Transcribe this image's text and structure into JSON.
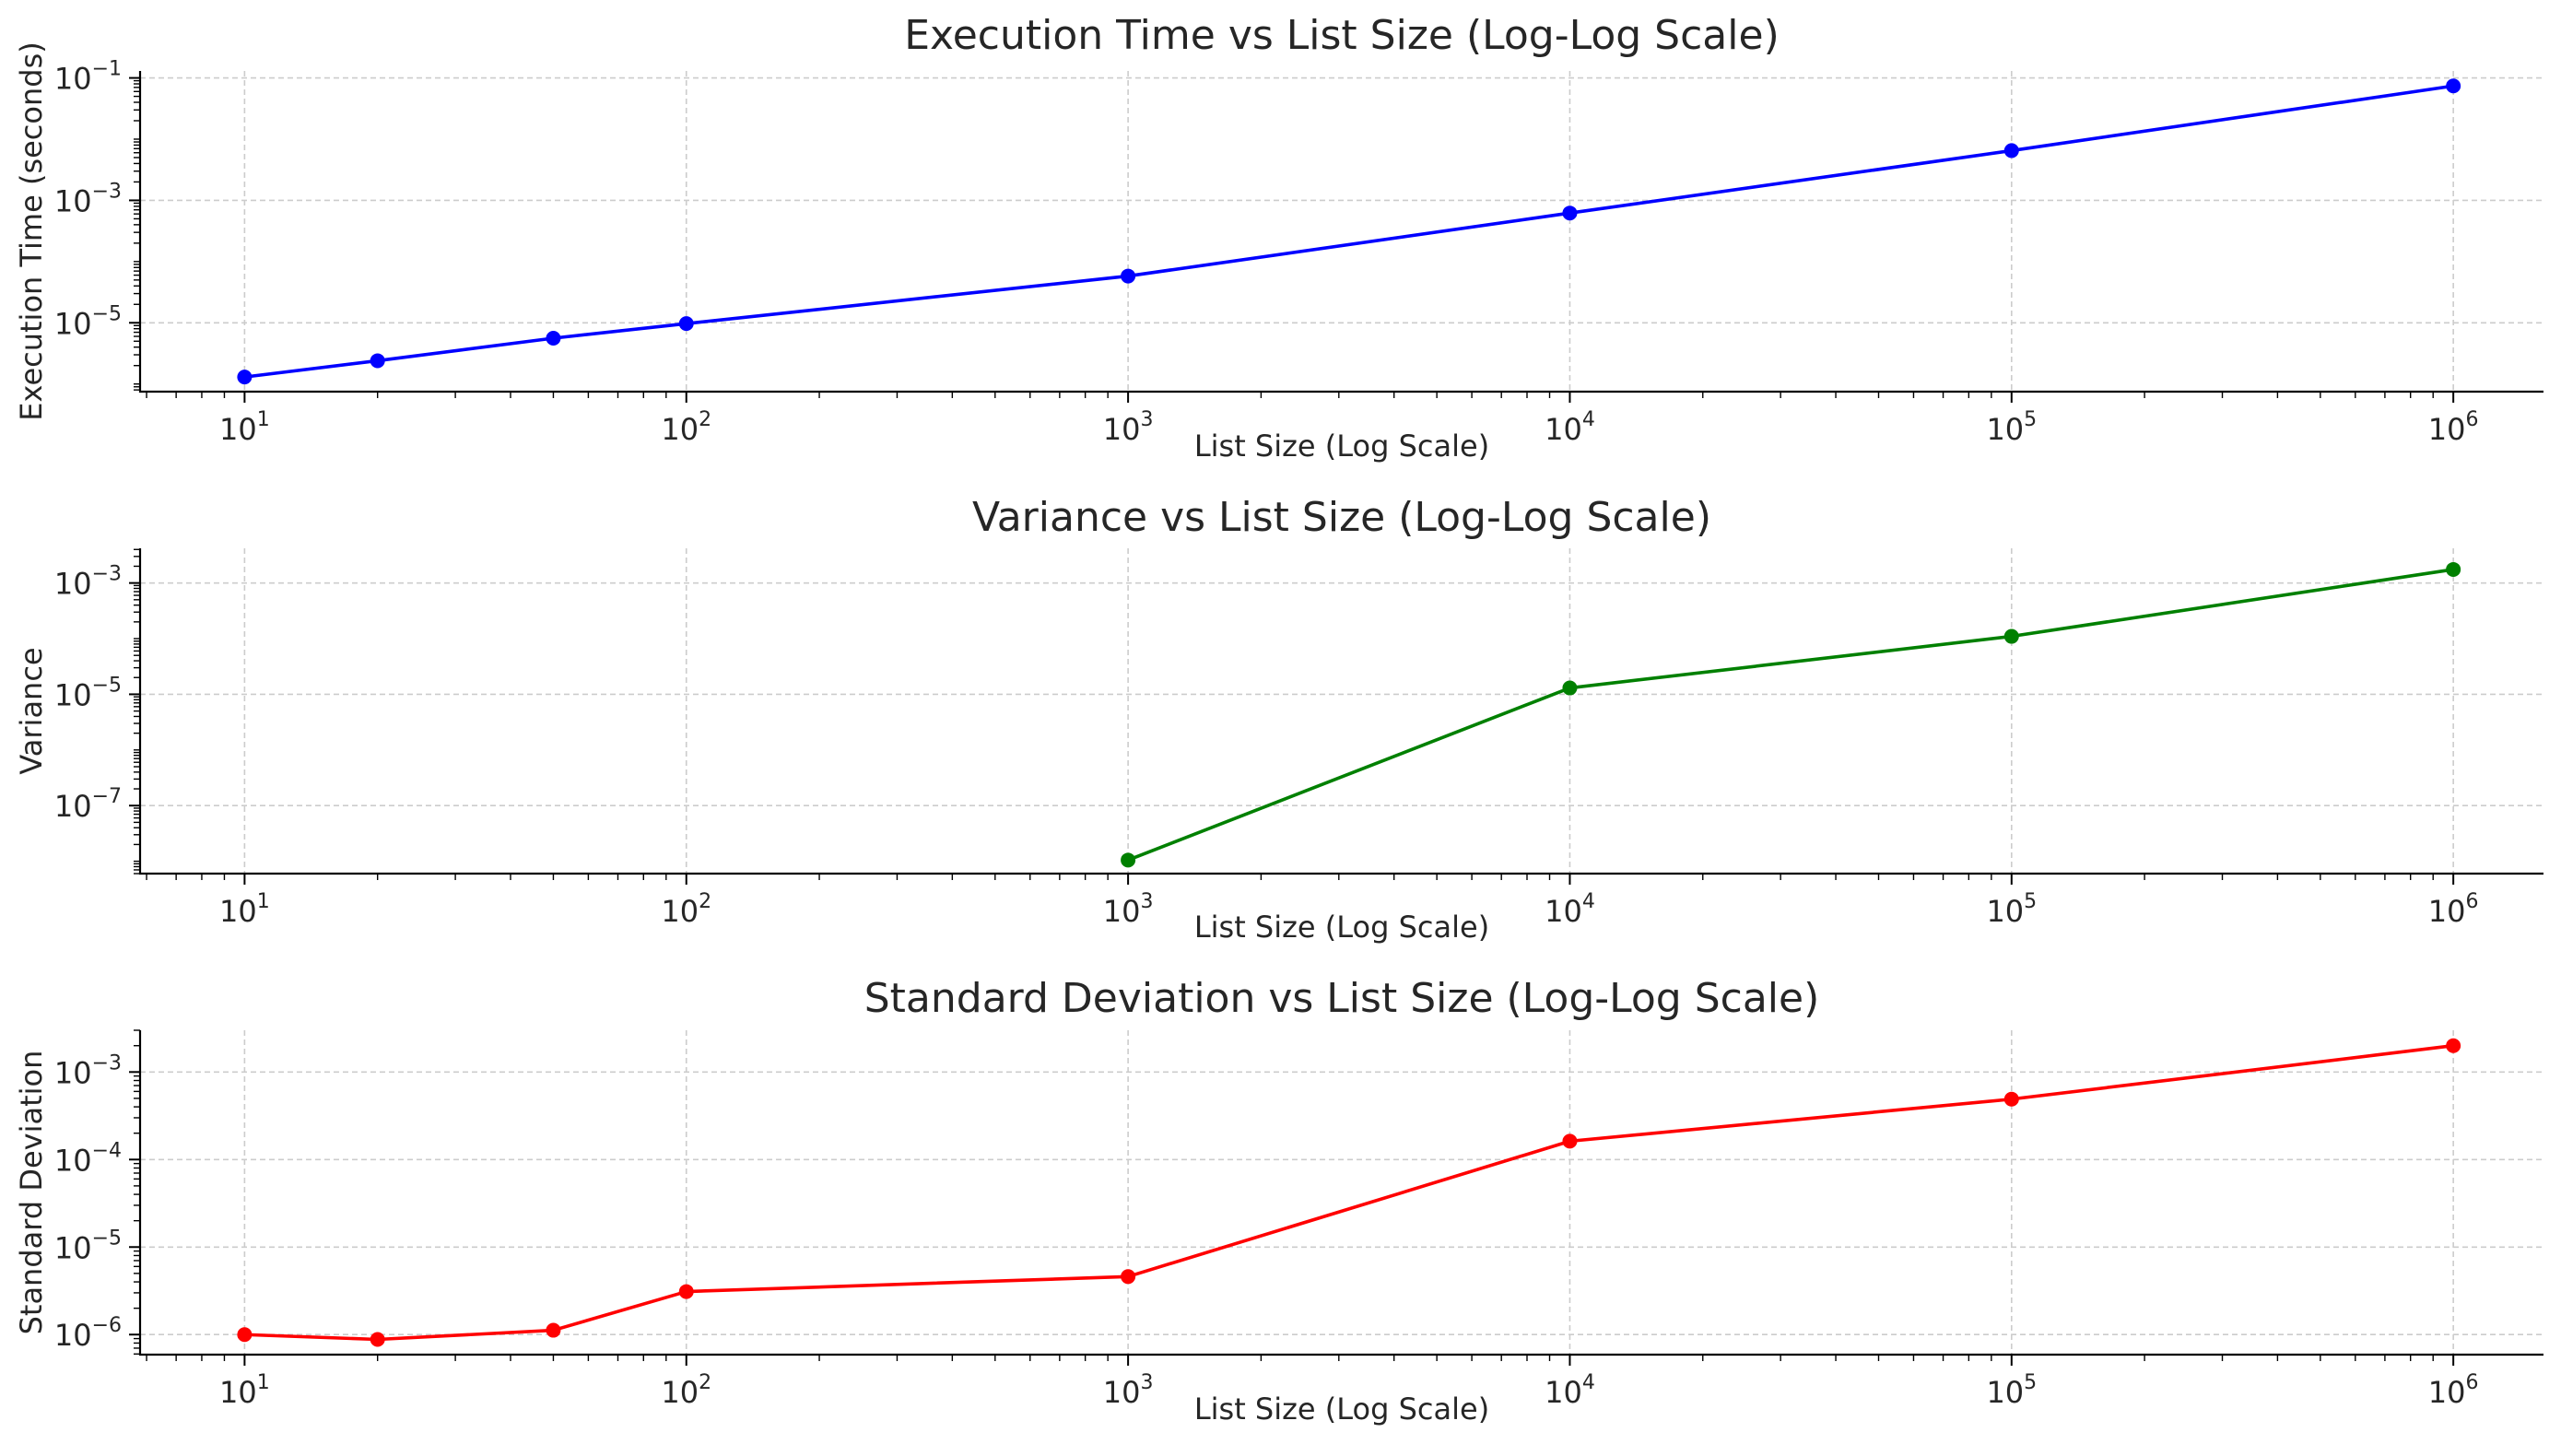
{
  "chart_data": [
    {
      "type": "line",
      "title": "Execution Time vs List Size (Log-Log Scale)",
      "xlabel": "List Size (Log Scale)",
      "ylabel": "Execution Time (seconds)",
      "xscale": "log",
      "yscale": "log",
      "xlim": [
        5.8,
        1600000
      ],
      "ylim": [
        7.5e-07,
        0.13
      ],
      "xticks": [
        10,
        100,
        1000,
        10000,
        100000,
        1000000
      ],
      "xtick_labels": [
        {
          "base": "10",
          "exp": "1"
        },
        {
          "base": "10",
          "exp": "2"
        },
        {
          "base": "10",
          "exp": "3"
        },
        {
          "base": "10",
          "exp": "4"
        },
        {
          "base": "10",
          "exp": "5"
        },
        {
          "base": "10",
          "exp": "6"
        }
      ],
      "yticks": [
        1e-05,
        0.001,
        0.1
      ],
      "ytick_labels": [
        {
          "base": "10",
          "exp": "−5"
        },
        {
          "base": "10",
          "exp": "−3"
        },
        {
          "base": "10",
          "exp": "−1"
        }
      ],
      "grid": true,
      "series": [
        {
          "color": "#0000ff",
          "x": [
            10,
            20,
            50,
            100,
            1000,
            10000,
            100000,
            1000000
          ],
          "y": [
            1.3e-06,
            2.4e-06,
            5.6e-06,
            9.7e-06,
            5.8e-05,
            0.00062,
            0.0065,
            0.074
          ]
        }
      ]
    },
    {
      "type": "line",
      "title": "Variance vs List Size (Log-Log Scale)",
      "xlabel": "List Size (Log Scale)",
      "ylabel": "Variance",
      "xscale": "log",
      "yscale": "log",
      "xlim": [
        5.8,
        1600000
      ],
      "ylim": [
        6e-09,
        0.0042
      ],
      "xticks": [
        10,
        100,
        1000,
        10000,
        100000,
        1000000
      ],
      "xtick_labels": [
        {
          "base": "10",
          "exp": "1"
        },
        {
          "base": "10",
          "exp": "2"
        },
        {
          "base": "10",
          "exp": "3"
        },
        {
          "base": "10",
          "exp": "4"
        },
        {
          "base": "10",
          "exp": "5"
        },
        {
          "base": "10",
          "exp": "6"
        }
      ],
      "yticks": [
        1e-07,
        1e-05,
        0.001
      ],
      "ytick_labels": [
        {
          "base": "10",
          "exp": "−7"
        },
        {
          "base": "10",
          "exp": "−5"
        },
        {
          "base": "10",
          "exp": "−3"
        }
      ],
      "grid": true,
      "series": [
        {
          "color": "#008000",
          "x": [
            1000,
            10000,
            100000,
            1000000
          ],
          "y": [
            1.05e-08,
            1.3e-05,
            0.00011,
            0.00175
          ]
        }
      ]
    },
    {
      "type": "line",
      "title": "Standard Deviation vs List Size (Log-Log Scale)",
      "xlabel": "List Size (Log Scale)",
      "ylabel": "Standard Deviation",
      "xscale": "log",
      "yscale": "log",
      "xlim": [
        5.8,
        1600000
      ],
      "ylim": [
        5.9e-07,
        0.003
      ],
      "xticks": [
        10,
        100,
        1000,
        10000,
        100000,
        1000000
      ],
      "xtick_labels": [
        {
          "base": "10",
          "exp": "1"
        },
        {
          "base": "10",
          "exp": "2"
        },
        {
          "base": "10",
          "exp": "3"
        },
        {
          "base": "10",
          "exp": "4"
        },
        {
          "base": "10",
          "exp": "5"
        },
        {
          "base": "10",
          "exp": "6"
        }
      ],
      "yticks": [
        1e-06,
        1e-05,
        0.0001,
        0.001
      ],
      "ytick_labels": [
        {
          "base": "10",
          "exp": "−6"
        },
        {
          "base": "10",
          "exp": "−5"
        },
        {
          "base": "10",
          "exp": "−4"
        },
        {
          "base": "10",
          "exp": "−3"
        }
      ],
      "grid": true,
      "series": [
        {
          "color": "#ff0000",
          "x": [
            10,
            20,
            50,
            100,
            1000,
            10000,
            100000,
            1000000
          ],
          "y": [
            1e-06,
            8.8e-07,
            1.12e-06,
            3.1e-06,
            4.6e-06,
            0.000162,
            0.00049,
            0.002
          ]
        }
      ]
    }
  ]
}
